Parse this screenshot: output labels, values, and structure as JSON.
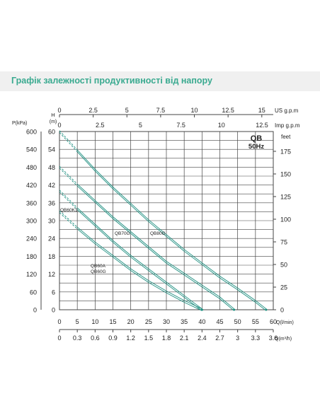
{
  "header": {
    "title": "Графік залежності продуктивності від напору"
  },
  "colors": {
    "title": "#3aaa90",
    "curve": "#1e8f80",
    "grid": "#444444",
    "band": "#f0f0f0"
  },
  "chart_data": {
    "type": "line",
    "title": "QB\n50Hz",
    "title_lines": [
      "QB",
      "50Hz"
    ],
    "pressure_axis": {
      "label": "P(kPa)",
      "ticks": [
        "600",
        "540",
        "480",
        "420",
        "360",
        "300",
        "240",
        "180",
        "120",
        "60",
        "0"
      ]
    },
    "head_axis": {
      "label_lines": [
        "H",
        "(m)"
      ],
      "ticks": [
        "60",
        "54",
        "48",
        "42",
        "36",
        "30",
        "24",
        "18",
        "12",
        "6",
        "0"
      ],
      "range": [
        0,
        60
      ]
    },
    "feet_axis": {
      "label": "feet",
      "ticks": [
        "175",
        "150",
        "125",
        "100",
        "75",
        "50",
        "25",
        "0"
      ],
      "values": [
        175,
        150,
        125,
        100,
        75,
        50,
        25,
        0
      ]
    },
    "q_lmin_axis": {
      "label": "Q(l/min)",
      "ticks": [
        "0",
        "5",
        "10",
        "15",
        "20",
        "25",
        "30",
        "35",
        "40",
        "45",
        "50",
        "55",
        "60"
      ],
      "range": [
        0,
        60
      ]
    },
    "q_m3h_axis": {
      "label": "Q(m³/h)",
      "ticks": [
        "0",
        "0.3",
        "0.6",
        "0.9",
        "1.2",
        "1.5",
        "1.8",
        "2.1",
        "2.4",
        "2.7",
        "3",
        "3.3",
        "3.6"
      ]
    },
    "us_gpm_axis": {
      "label": "US  g.p.m",
      "ticks": [
        "0",
        "2.5",
        "5",
        "7.5",
        "10",
        "12.5",
        "15"
      ],
      "values": [
        0,
        2.5,
        5,
        7.5,
        10,
        12.5,
        15
      ]
    },
    "imp_gpm_axis": {
      "label": "Imp  g.p.m",
      "ticks": [
        "0",
        "2.5",
        "5",
        "7.5",
        "10",
        "12.5"
      ],
      "values": [
        0,
        2.5,
        5,
        7.5,
        10,
        12.5
      ]
    },
    "series": [
      {
        "name": "QB80G",
        "x": [
          0,
          5,
          10,
          15,
          20,
          25,
          30,
          35,
          40,
          45,
          50,
          55,
          58
        ],
        "y": [
          60,
          53.5,
          47,
          41,
          35.5,
          30,
          25,
          20,
          15.5,
          11,
          7,
          2.8,
          0
        ],
        "dashed_until_x": 5
      },
      {
        "name": "QB70G",
        "x": [
          0,
          5,
          10,
          15,
          20,
          25,
          30,
          35,
          40,
          45,
          49
        ],
        "y": [
          48,
          42,
          36.5,
          31,
          26,
          21,
          16,
          12,
          8,
          4,
          0
        ],
        "dashed_until_x": 5
      },
      {
        "name": "QB60K1",
        "x": [
          0,
          5,
          10,
          15,
          20,
          25,
          30,
          35,
          40
        ],
        "y": [
          40,
          34,
          28.5,
          23,
          18,
          13.5,
          9,
          4.5,
          0
        ],
        "dashed_until_x": 5
      },
      {
        "name": "QB60A\nQB60G",
        "x": [
          0,
          5,
          10,
          15,
          20,
          25,
          30,
          35,
          40
        ],
        "y": [
          33,
          27.5,
          22.5,
          18,
          13.5,
          9.5,
          6,
          2.8,
          0
        ],
        "dashed_until_x": 5
      }
    ],
    "curve_labels": [
      {
        "text": "QB60K1",
        "series": "QB60K1"
      },
      {
        "text": "QB70G",
        "series": "QB70G"
      },
      {
        "text": "QB80G",
        "series": "QB80G"
      },
      {
        "text": "QB60A",
        "series": "QB60A\nQB60G"
      },
      {
        "text": "QB60G",
        "series": "QB60A\nQB60G"
      }
    ],
    "grid": true
  }
}
